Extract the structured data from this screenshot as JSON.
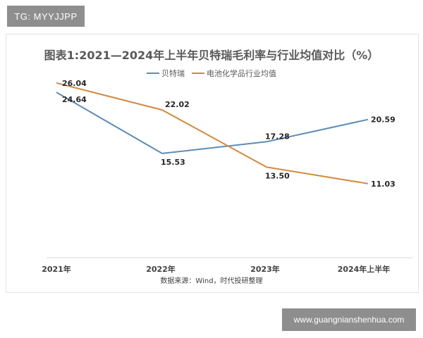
{
  "watermarks": {
    "top_left": "TG: MYYJJPP",
    "bottom_right": "www.guangnianshenhua.com"
  },
  "chart_data": {
    "type": "line",
    "title": "图表1:2021—2024年上半年贝特瑞毛利率与行业均值对比（%）",
    "source": "数据来源：Wind，时代投研整理",
    "categories": [
      "2021年",
      "2022年",
      "2023年",
      "2024年上半年"
    ],
    "series": [
      {
        "name": "贝特瑞",
        "color": "#5b8db8",
        "values": [
          24.64,
          15.53,
          17.28,
          20.59
        ]
      },
      {
        "name": "电池化学品行业均值",
        "color": "#d08a3e",
        "values": [
          26.04,
          22.02,
          13.5,
          11.03
        ]
      }
    ],
    "ylim": [
      0,
      30
    ],
    "grid": false,
    "legend": "top-center",
    "xlabel": "",
    "ylabel": ""
  }
}
